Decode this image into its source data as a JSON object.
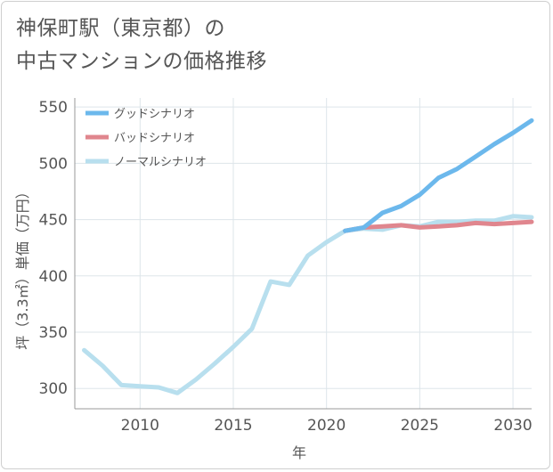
{
  "title_line1": "神保町駅（東京都）の",
  "title_line2": "中古マンションの価格推移",
  "chart_data": {
    "type": "line",
    "title": "神保町駅（東京都）の中古マンションの価格推移",
    "xlabel": "年",
    "ylabel": "坪（3.3㎡）単価（万円）",
    "xlim": [
      2006.5,
      2031
    ],
    "ylim": [
      282,
      558
    ],
    "xticks": [
      2010,
      2015,
      2020,
      2025,
      2030
    ],
    "yticks": [
      300,
      350,
      400,
      450,
      500,
      550
    ],
    "legend_position": "top-left",
    "series": [
      {
        "name": "グッドシナリオ",
        "color": "#6cb8ec",
        "x": [
          2021,
          2022,
          2023,
          2024,
          2025,
          2026,
          2027,
          2028,
          2029,
          2030,
          2031
        ],
        "values": [
          440,
          443,
          456,
          462,
          472,
          487,
          495,
          506,
          517,
          527,
          538
        ]
      },
      {
        "name": "バッドシナリオ",
        "color": "#e0868e",
        "x": [
          2021,
          2022,
          2023,
          2024,
          2025,
          2026,
          2027,
          2028,
          2029,
          2030,
          2031
        ],
        "values": [
          440,
          443,
          444,
          445,
          443,
          444,
          445,
          447,
          446,
          447,
          448
        ]
      },
      {
        "name": "ノーマルシナリオ",
        "color": "#b8dfee",
        "x": [
          2007,
          2008,
          2009,
          2010,
          2011,
          2012,
          2013,
          2014,
          2015,
          2016,
          2017,
          2018,
          2019,
          2020,
          2021,
          2022,
          2023,
          2024,
          2025,
          2026,
          2027,
          2028,
          2029,
          2030,
          2031
        ],
        "values": [
          334,
          320,
          303,
          302,
          301,
          296,
          308,
          322,
          337,
          353,
          395,
          392,
          418,
          430,
          440,
          442,
          441,
          445,
          444,
          448,
          448,
          449,
          449,
          453,
          452
        ]
      }
    ]
  }
}
